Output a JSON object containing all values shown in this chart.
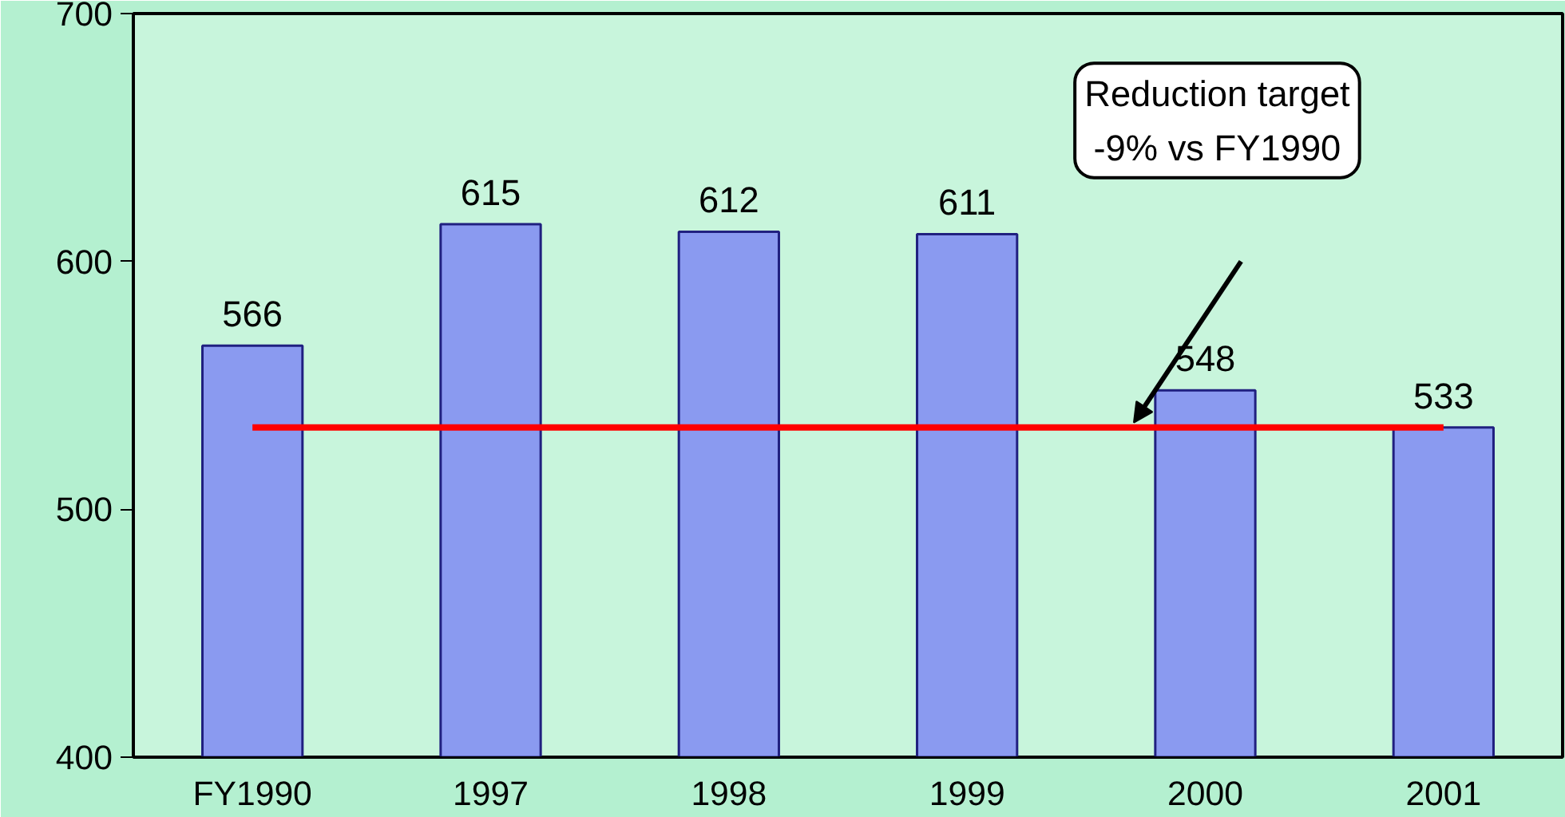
{
  "chart_data": {
    "type": "bar",
    "categories": [
      "FY1990",
      "1997",
      "1998",
      "1999",
      "2000",
      "2001"
    ],
    "values": [
      566,
      615,
      612,
      611,
      548,
      533
    ],
    "color": "#8a9af0",
    "ylim": [
      400,
      700
    ],
    "yticks": [
      400,
      500,
      600,
      700
    ],
    "data_labels": true,
    "grid": false,
    "ref_lines": [
      {
        "axis": "y",
        "value": 533,
        "color": "#ff0000"
      }
    ],
    "annotations": [
      "Reduction target\n-9% vs FY1990"
    ]
  }
}
